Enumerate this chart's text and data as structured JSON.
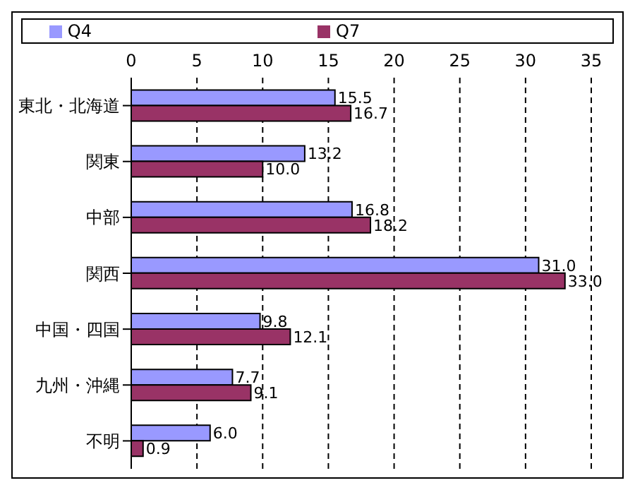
{
  "chart_data": {
    "type": "bar",
    "orientation": "horizontal",
    "categories": [
      "東北・北海道",
      "関東",
      "中部",
      "関西",
      "中国・四国",
      "九州・沖縄",
      "不明"
    ],
    "series": [
      {
        "name": "Q4",
        "color": "#9999ff",
        "values": [
          15.5,
          13.2,
          16.8,
          31,
          9.8,
          7.7,
          6
        ],
        "value_labels": [
          "15.5",
          "13.2",
          "16.8",
          "31.0",
          "9.8",
          "7.7",
          "6.0"
        ]
      },
      {
        "name": "Q7",
        "color": "#993366",
        "values": [
          16.7,
          10,
          18.2,
          33,
          12.1,
          9.1,
          0.9
        ],
        "value_labels": [
          "16.7",
          "10.0",
          "18.2",
          "33.0",
          "12.1",
          "9.1",
          "0.9"
        ]
      }
    ],
    "xlim": [
      0,
      35
    ],
    "xticks": [
      0,
      5,
      10,
      15,
      20,
      25,
      30,
      35
    ],
    "grid": "x",
    "legend": "top"
  }
}
